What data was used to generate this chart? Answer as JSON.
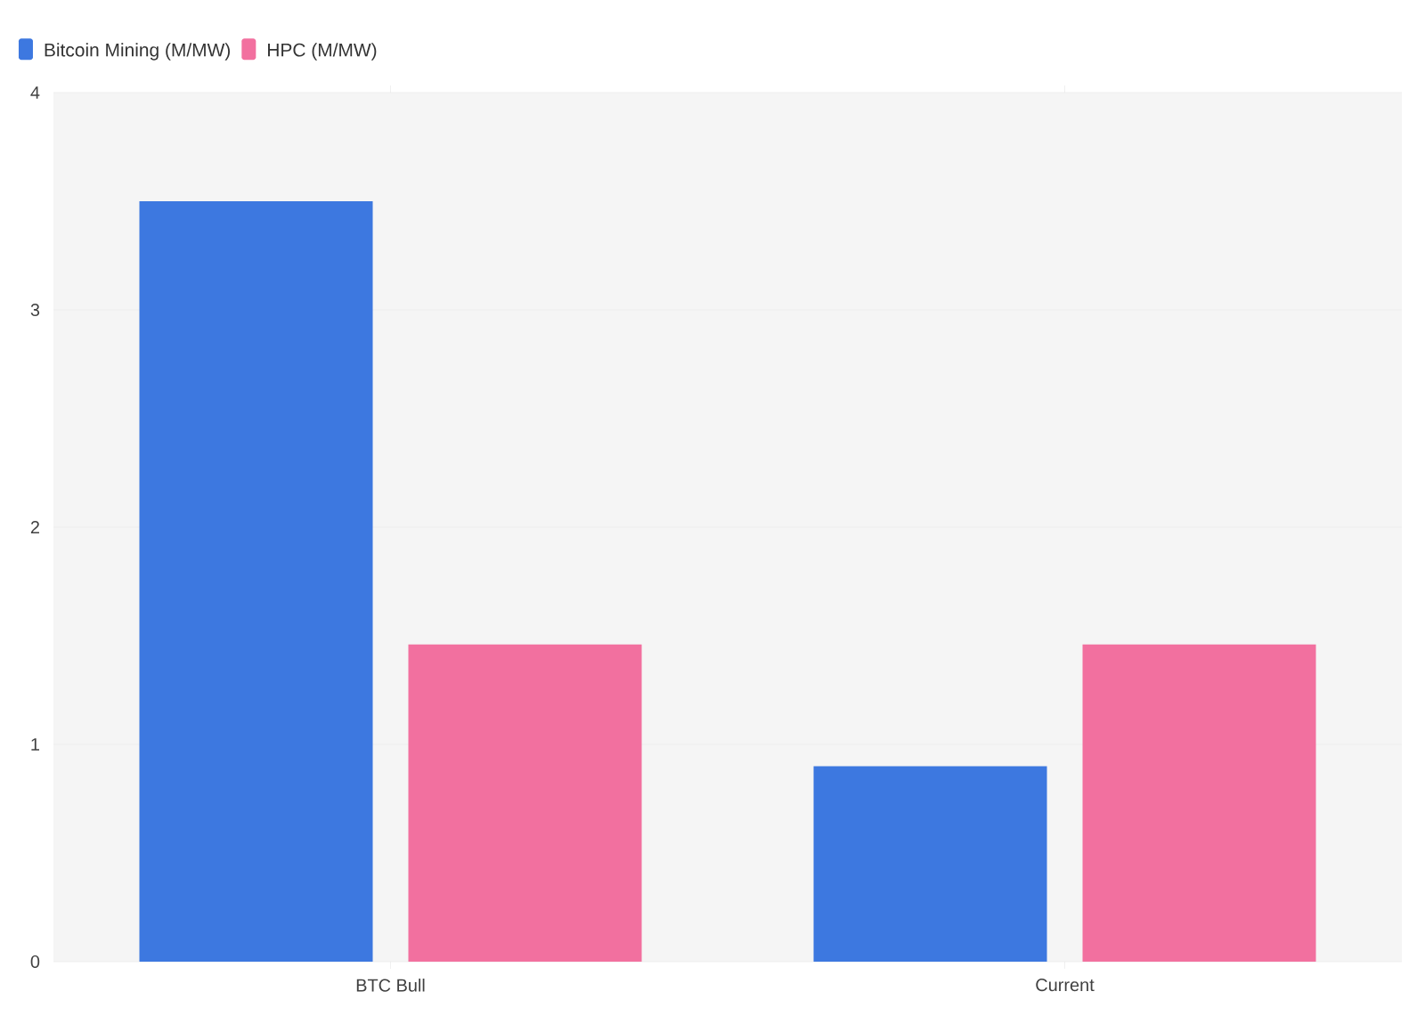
{
  "chart_data": {
    "type": "bar",
    "categories": [
      "BTC Bull",
      "Current"
    ],
    "series": [
      {
        "name": "Bitcoin Mining (M/MW)",
        "color": "#3d78e0",
        "values": [
          3.5,
          0.9
        ]
      },
      {
        "name": "HPC (M/MW)",
        "color": "#f2709f",
        "values": [
          1.46,
          1.46
        ]
      }
    ],
    "ylim": [
      0,
      4
    ],
    "yticks": [
      0,
      1,
      2,
      3,
      4
    ],
    "grid": "y",
    "legend": "top left"
  }
}
